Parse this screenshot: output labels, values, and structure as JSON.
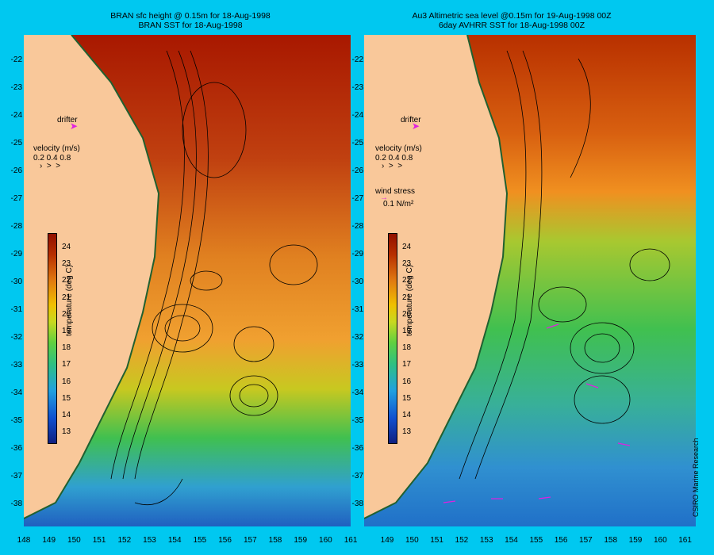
{
  "left_panel": {
    "title_line1": "BRAN sfc height @ 0.15m for 18-Aug-1998",
    "title_line2": "BRAN SST for 18-Aug-1998",
    "drifter_label": "drifter",
    "velocity_label": "velocity (m/s)",
    "velocity_scale": "0.2 0.4 0.8",
    "colorbar_label": "temperature (deg C)"
  },
  "right_panel": {
    "title_line1": "Au3 Altimetric sea level  @0.15m for 19-Aug-1998 00Z",
    "title_line2": "6day AVHRR SST for 18-Aug-1998 00Z",
    "drifter_label": "drifter",
    "velocity_label": "velocity (m/s)",
    "velocity_scale": "0.2 0.4 0.8",
    "wind_label": "wind stress",
    "wind_scale": "0.1 N/m²",
    "colorbar_label": "temperature (deg C)"
  },
  "colorbar_ticks": [
    "24",
    "23",
    "22",
    "21",
    "20",
    "19",
    "18",
    "17",
    "16",
    "15",
    "14",
    "13"
  ],
  "lat_ticks": [
    "-22",
    "-23",
    "-24",
    "-25",
    "-26",
    "-27",
    "-28",
    "-29",
    "-30",
    "-31",
    "-32",
    "-33",
    "-34",
    "-35",
    "-36",
    "-37",
    "-38"
  ],
  "lon_ticks_left": [
    "148",
    "149",
    "150",
    "151",
    "152",
    "153",
    "154",
    "155",
    "156",
    "157",
    "158",
    "159",
    "160",
    "161"
  ],
  "lon_ticks_right": [
    "149",
    "150",
    "151",
    "152",
    "153",
    "154",
    "155",
    "156",
    "157",
    "158",
    "159",
    "160",
    "161"
  ],
  "credit": "CSIRO Marine Research",
  "colors": {
    "background": "#00c8f0",
    "land": "#f9c89a",
    "drifter": "#e020e0"
  }
}
